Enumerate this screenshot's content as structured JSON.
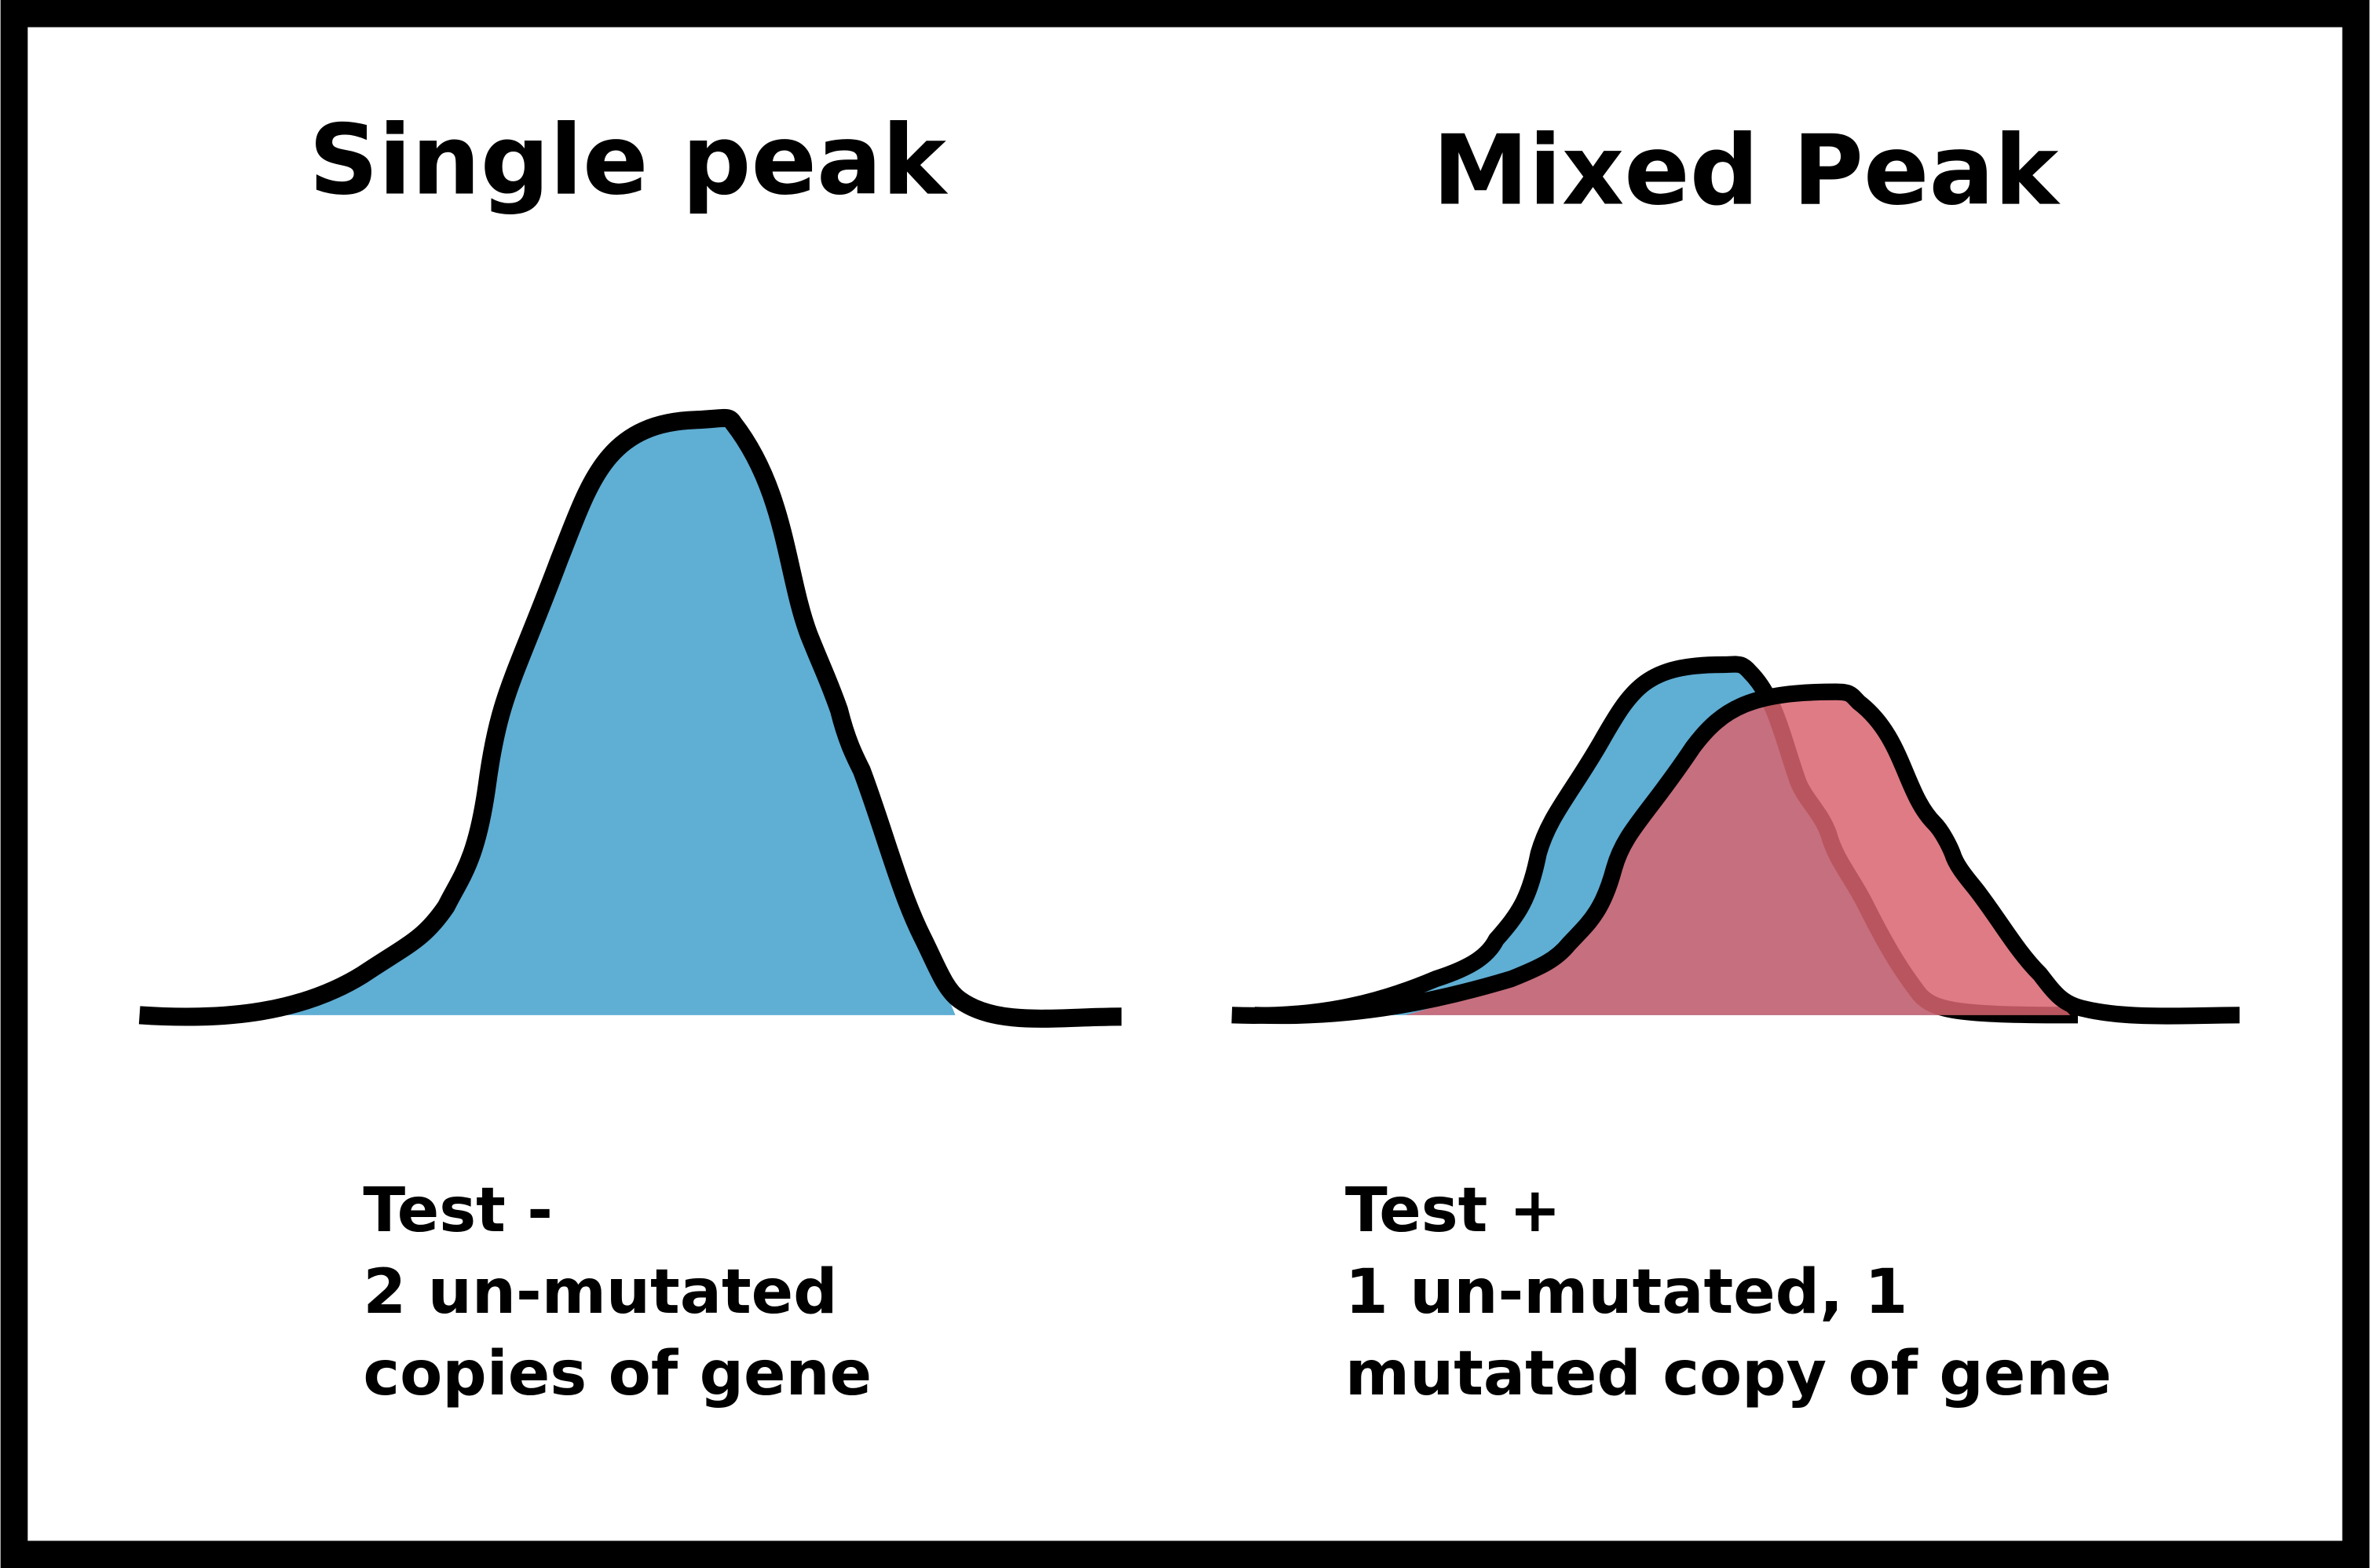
{
  "panels": [
    {
      "title": "Single peak",
      "caption": [
        "Test -",
        "2 un-mutated",
        "copies of gene"
      ]
    },
    {
      "title": "Mixed Peak",
      "caption": [
        "Test +",
        "1 un-mutated, 1",
        "mutated copy of gene"
      ]
    }
  ]
}
